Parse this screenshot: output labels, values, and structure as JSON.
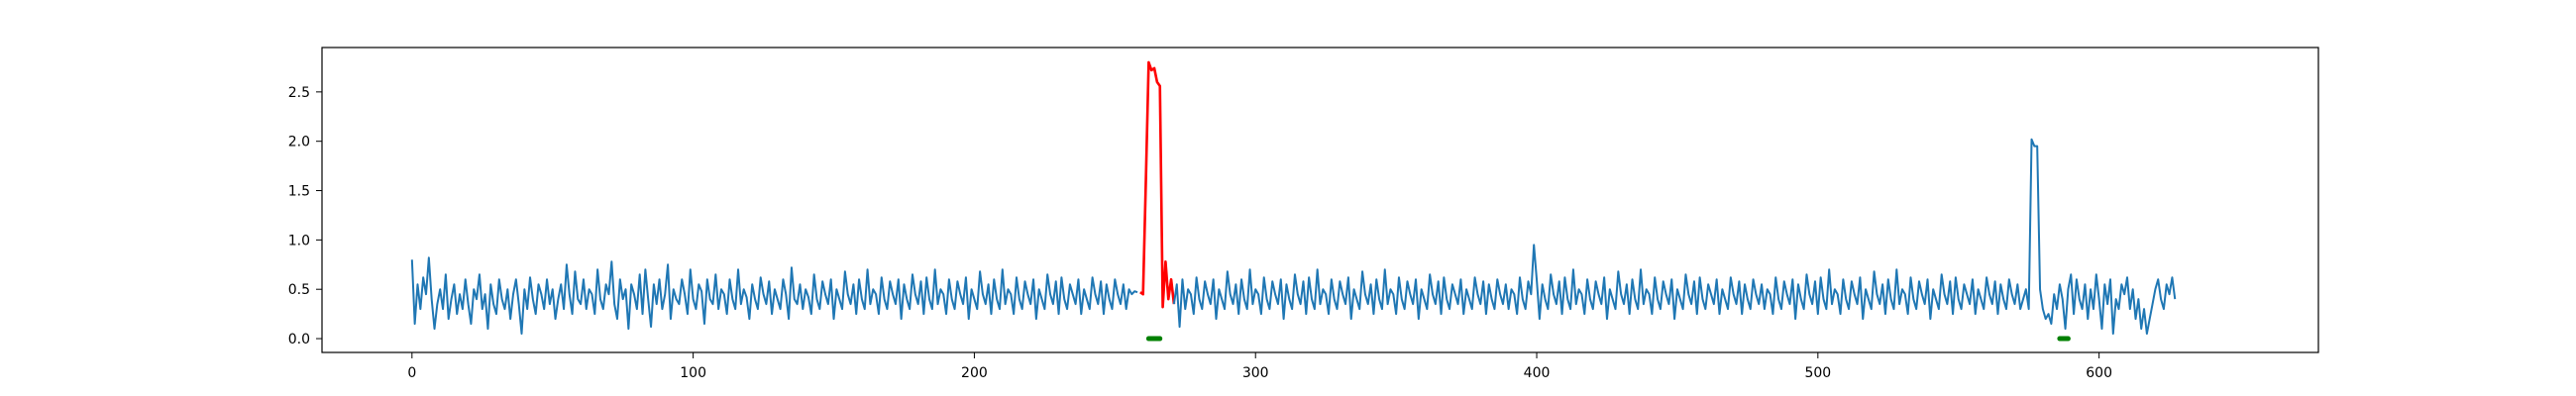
{
  "chart_data": {
    "type": "line",
    "title": "",
    "xlabel": "",
    "ylabel": "",
    "xlim": [
      -32,
      678
    ],
    "ylim": [
      -0.14,
      2.95
    ],
    "x_ticks": [
      0,
      100,
      200,
      300,
      400,
      500,
      600
    ],
    "y_ticks": [
      0.0,
      0.5,
      1.0,
      1.5,
      2.0,
      2.5
    ],
    "x_tick_labels": [
      "0",
      "100",
      "200",
      "300",
      "400",
      "500",
      "600"
    ],
    "y_tick_labels": [
      "0.0",
      "0.5",
      "1.0",
      "1.5",
      "2.0",
      "2.5"
    ],
    "grid": false,
    "colors": {
      "signal": "#1f77b4",
      "anomaly": "#ff0000",
      "marker": "#008000"
    },
    "series": [
      {
        "role": "signal",
        "x_start": 0,
        "x_step": 1,
        "values": [
          0.8,
          0.15,
          0.55,
          0.3,
          0.62,
          0.45,
          0.82,
          0.4,
          0.1,
          0.35,
          0.5,
          0.3,
          0.65,
          0.2,
          0.4,
          0.55,
          0.25,
          0.45,
          0.3,
          0.6,
          0.35,
          0.15,
          0.5,
          0.4,
          0.65,
          0.3,
          0.45,
          0.1,
          0.55,
          0.35,
          0.25,
          0.6,
          0.4,
          0.3,
          0.5,
          0.2,
          0.45,
          0.6,
          0.35,
          0.05,
          0.5,
          0.3,
          0.62,
          0.4,
          0.25,
          0.55,
          0.45,
          0.3,
          0.6,
          0.35,
          0.5,
          0.2,
          0.4,
          0.55,
          0.3,
          0.75,
          0.45,
          0.25,
          0.68,
          0.4,
          0.35,
          0.6,
          0.3,
          0.5,
          0.45,
          0.25,
          0.7,
          0.4,
          0.3,
          0.55,
          0.45,
          0.78,
          0.35,
          0.2,
          0.6,
          0.4,
          0.5,
          0.1,
          0.55,
          0.45,
          0.3,
          0.65,
          0.25,
          0.7,
          0.4,
          0.12,
          0.55,
          0.35,
          0.6,
          0.3,
          0.45,
          0.75,
          0.2,
          0.5,
          0.4,
          0.35,
          0.6,
          0.45,
          0.25,
          0.7,
          0.4,
          0.3,
          0.55,
          0.48,
          0.15,
          0.6,
          0.4,
          0.35,
          0.65,
          0.3,
          0.5,
          0.45,
          0.25,
          0.6,
          0.4,
          0.3,
          0.7,
          0.35,
          0.5,
          0.42,
          0.2,
          0.55,
          0.4,
          0.3,
          0.62,
          0.45,
          0.35,
          0.58,
          0.25,
          0.5,
          0.4,
          0.3,
          0.6,
          0.45,
          0.2,
          0.72,
          0.4,
          0.35,
          0.55,
          0.3,
          0.5,
          0.42,
          0.25,
          0.65,
          0.4,
          0.3,
          0.58,
          0.45,
          0.35,
          0.6,
          0.2,
          0.5,
          0.4,
          0.3,
          0.68,
          0.45,
          0.35,
          0.55,
          0.25,
          0.6,
          0.4,
          0.3,
          0.7,
          0.35,
          0.5,
          0.45,
          0.25,
          0.62,
          0.4,
          0.3,
          0.58,
          0.45,
          0.35,
          0.6,
          0.2,
          0.55,
          0.4,
          0.3,
          0.65,
          0.45,
          0.35,
          0.58,
          0.25,
          0.62,
          0.4,
          0.3,
          0.7,
          0.35,
          0.5,
          0.45,
          0.25,
          0.6,
          0.4,
          0.3,
          0.58,
          0.45,
          0.35,
          0.62,
          0.2,
          0.5,
          0.4,
          0.3,
          0.68,
          0.45,
          0.35,
          0.55,
          0.25,
          0.6,
          0.4,
          0.3,
          0.7,
          0.35,
          0.5,
          0.45,
          0.25,
          0.62,
          0.4,
          0.3,
          0.58,
          0.45,
          0.35,
          0.6,
          0.2,
          0.5,
          0.4,
          0.3,
          0.65,
          0.45,
          0.35,
          0.58,
          0.25,
          0.62,
          0.4,
          0.3,
          0.55,
          0.45,
          0.35,
          0.6,
          0.25,
          0.5,
          0.4,
          0.3,
          0.62,
          0.45,
          0.35,
          0.58,
          0.25,
          0.55,
          0.4,
          0.3,
          0.6,
          0.45,
          0.35,
          0.55,
          0.3,
          0.5,
          0.45,
          0.48,
          0.47
        ],
        "__comment_segment__": "x = 0..259"
      },
      {
        "role": "anomaly",
        "x_start": 259,
        "x_step": 1,
        "values": [
          0.47,
          0.45,
          1.6,
          2.8,
          2.72,
          2.74,
          2.6,
          2.56,
          0.32,
          0.78,
          0.4,
          0.6,
          0.35
        ]
      },
      {
        "role": "signal",
        "x_start": 271,
        "x_step": 1,
        "values": [
          0.35,
          0.55,
          0.12,
          0.6,
          0.3,
          0.5,
          0.45,
          0.25,
          0.62,
          0.4,
          0.3,
          0.58,
          0.45,
          0.35,
          0.6,
          0.2,
          0.5,
          0.4,
          0.3,
          0.68,
          0.45,
          0.35,
          0.55,
          0.25,
          0.6,
          0.4,
          0.3,
          0.7,
          0.35,
          0.5,
          0.45,
          0.25,
          0.62,
          0.4,
          0.3,
          0.58,
          0.45,
          0.35,
          0.6,
          0.2,
          0.55,
          0.4,
          0.3,
          0.65,
          0.45,
          0.35,
          0.58,
          0.25,
          0.62,
          0.4,
          0.3,
          0.7,
          0.35,
          0.5,
          0.45,
          0.25,
          0.6,
          0.4,
          0.3,
          0.58,
          0.45,
          0.35,
          0.62,
          0.2,
          0.5,
          0.4,
          0.3,
          0.68,
          0.45,
          0.35,
          0.55,
          0.25,
          0.6,
          0.4,
          0.3,
          0.7,
          0.35,
          0.5,
          0.45,
          0.25,
          0.62,
          0.4,
          0.3,
          0.58,
          0.45,
          0.35,
          0.6,
          0.2,
          0.5,
          0.4,
          0.3,
          0.65,
          0.45,
          0.35,
          0.58,
          0.25,
          0.62,
          0.4,
          0.3,
          0.55,
          0.45,
          0.35,
          0.6,
          0.25,
          0.5,
          0.4,
          0.3,
          0.62,
          0.45,
          0.35,
          0.58,
          0.25,
          0.55,
          0.4,
          0.3,
          0.6,
          0.45,
          0.35,
          0.55,
          0.3,
          0.5,
          0.45,
          0.25,
          0.62,
          0.4,
          0.3,
          0.58,
          0.45,
          0.95,
          0.6,
          0.2,
          0.55,
          0.4,
          0.3,
          0.65,
          0.45,
          0.35,
          0.58,
          0.25,
          0.62,
          0.4,
          0.3,
          0.7,
          0.35,
          0.5,
          0.45,
          0.25,
          0.6,
          0.4,
          0.3,
          0.58,
          0.45,
          0.35,
          0.62,
          0.2,
          0.5,
          0.4,
          0.3,
          0.68,
          0.45,
          0.35,
          0.55,
          0.25,
          0.6,
          0.4,
          0.3,
          0.7,
          0.35,
          0.5,
          0.45,
          0.25,
          0.62,
          0.4,
          0.3,
          0.58,
          0.45,
          0.35,
          0.6,
          0.2,
          0.5,
          0.4,
          0.3,
          0.65,
          0.45,
          0.35,
          0.58,
          0.25,
          0.62,
          0.4,
          0.3,
          0.55,
          0.45,
          0.35,
          0.6,
          0.25,
          0.5,
          0.4,
          0.3,
          0.62,
          0.45,
          0.35,
          0.58,
          0.25,
          0.55,
          0.4,
          0.3,
          0.6,
          0.45,
          0.35,
          0.55,
          0.3,
          0.5,
          0.45,
          0.25,
          0.62,
          0.4,
          0.3,
          0.58,
          0.45,
          0.35,
          0.6,
          0.2,
          0.55,
          0.4,
          0.3,
          0.65,
          0.45,
          0.35,
          0.58,
          0.25,
          0.62,
          0.4,
          0.3,
          0.7,
          0.35,
          0.5,
          0.45,
          0.25,
          0.6,
          0.4,
          0.3,
          0.58,
          0.45,
          0.35,
          0.62,
          0.2,
          0.5,
          0.4,
          0.3,
          0.68,
          0.45,
          0.35,
          0.55,
          0.25,
          0.6,
          0.4,
          0.3,
          0.7,
          0.35,
          0.5,
          0.45,
          0.25,
          0.62,
          0.4,
          0.3,
          0.58,
          0.45,
          0.35,
          0.6,
          0.2,
          0.5,
          0.4,
          0.3,
          0.65,
          0.45,
          0.35,
          0.58,
          0.25,
          0.62,
          0.4,
          0.3,
          0.55,
          0.45,
          0.35,
          0.6,
          0.25,
          0.5,
          0.4,
          0.3,
          0.62,
          0.45,
          0.35,
          0.58,
          0.25,
          0.55,
          0.4,
          0.3,
          0.6,
          0.45,
          0.35,
          0.55,
          0.3,
          0.4,
          0.5,
          0.3,
          2.02,
          1.95,
          1.95,
          0.5,
          0.3,
          0.2,
          0.25,
          0.15,
          0.45,
          0.3,
          0.55,
          0.4,
          0.1,
          0.5,
          0.65,
          0.25,
          0.6,
          0.4,
          0.3,
          0.55,
          0.2,
          0.5,
          0.3,
          0.65,
          0.4,
          0.1,
          0.55,
          0.35,
          0.6,
          0.05,
          0.4,
          0.3,
          0.55,
          0.45,
          0.62,
          0.3,
          0.5,
          0.2,
          0.4,
          0.1,
          0.3,
          0.05,
          0.2,
          0.35,
          0.5,
          0.6,
          0.4,
          0.3,
          0.55,
          0.45,
          0.62,
          0.4
        ]
      }
    ],
    "markers": [
      {
        "x_start": 262,
        "x_end": 266,
        "y": 0.0
      },
      {
        "x_start": 586,
        "x_end": 589,
        "y": 0.0
      }
    ]
  }
}
